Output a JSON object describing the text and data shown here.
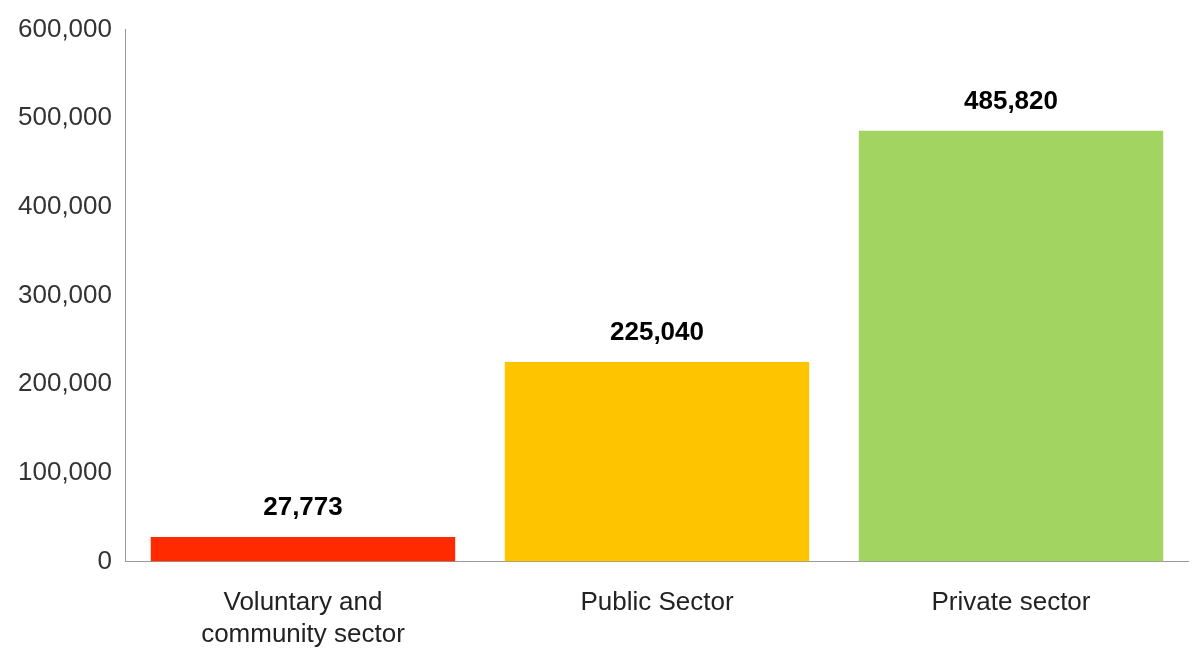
{
  "chart_data": {
    "type": "bar",
    "categories": [
      "Voluntary and community sector",
      "Public Sector",
      "Private sector"
    ],
    "values": [
      27773,
      225040,
      485820
    ],
    "colors": [
      "#ff2a00",
      "#ffc400",
      "#a2d462"
    ],
    "ylim": [
      0,
      600000
    ],
    "yticks": [
      {
        "value": 0,
        "label": "0"
      },
      {
        "value": 100000,
        "label": "100,000"
      },
      {
        "value": 200000,
        "label": "200,000"
      },
      {
        "value": 300000,
        "label": "300,000"
      },
      {
        "value": 400000,
        "label": "400,000"
      },
      {
        "value": 500000,
        "label": "500,000"
      },
      {
        "value": 600000,
        "label": "600,000"
      }
    ],
    "value_labels": [
      "27,773",
      "225,040",
      "485,820"
    ],
    "grid": false,
    "legend": false
  }
}
